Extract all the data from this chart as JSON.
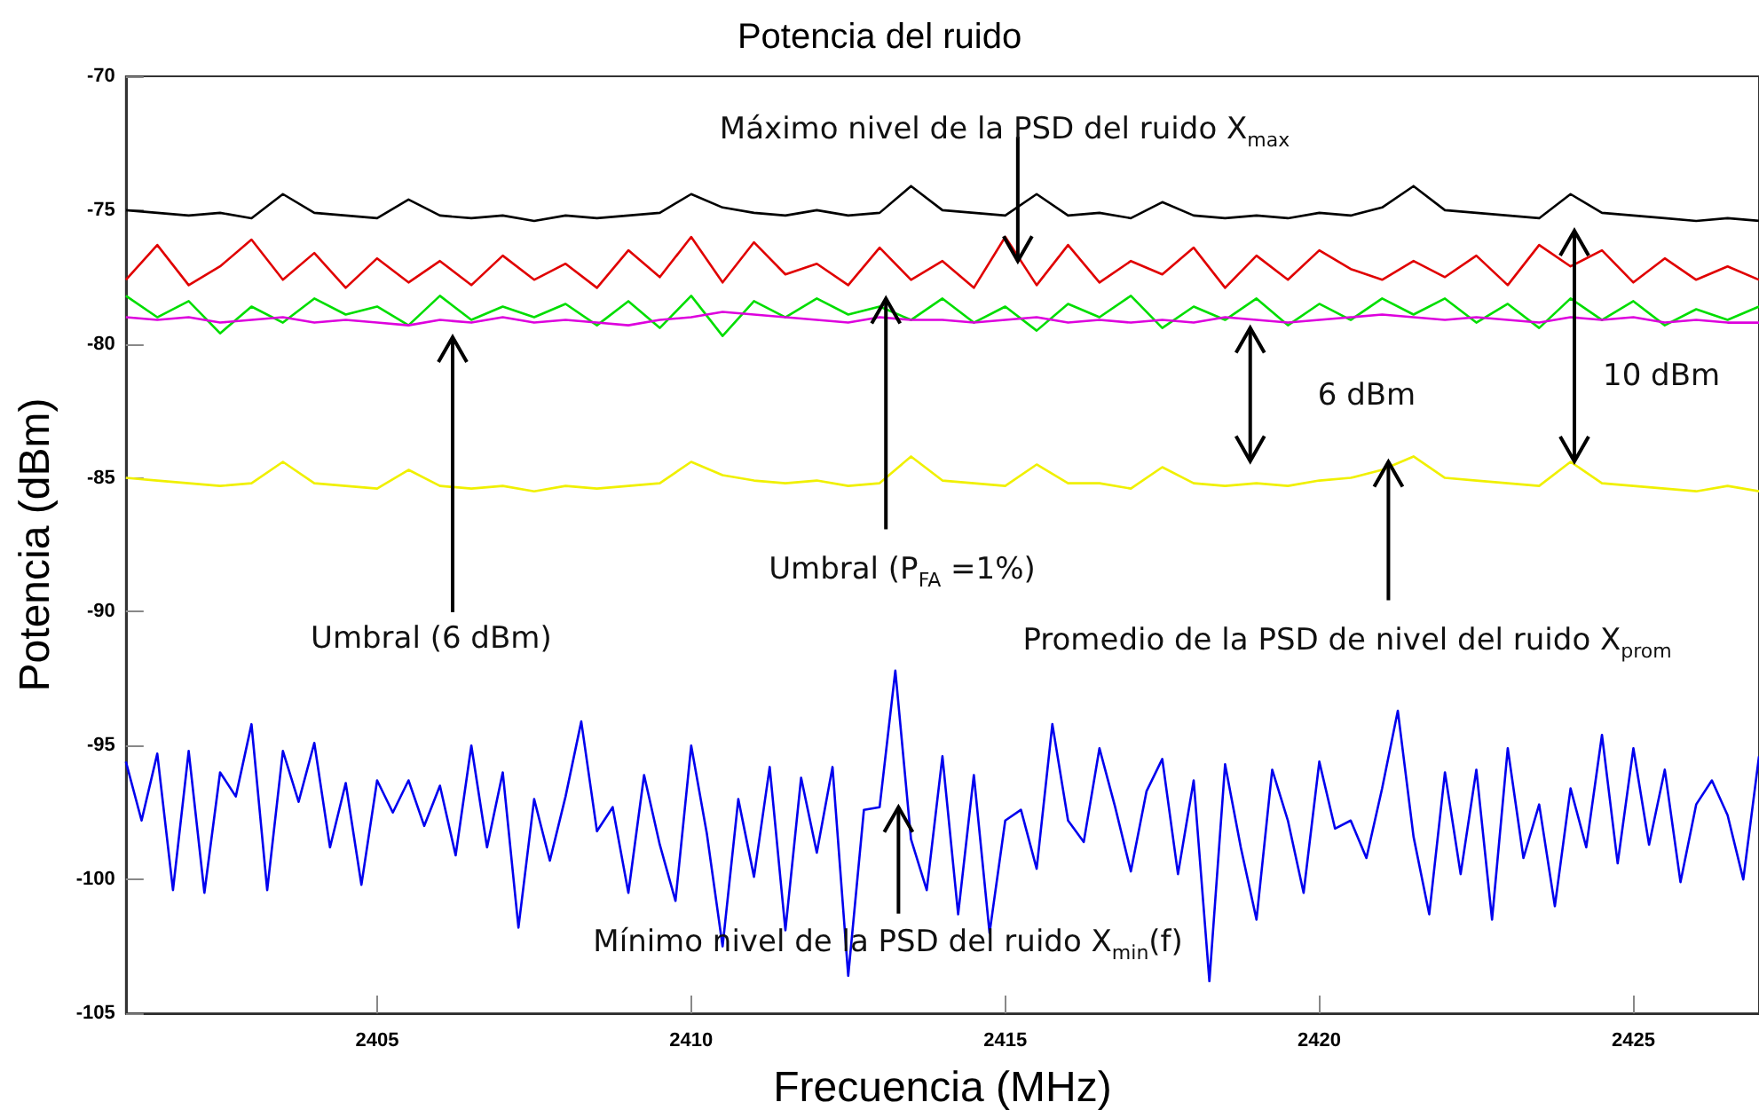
{
  "chart_data": {
    "type": "line",
    "title": "Potencia del ruido",
    "xlabel": "Frecuencia (MHz)",
    "ylabel": "Potencia (dBm)",
    "xlim": [
      2401,
      2427
    ],
    "xticks": [
      2405,
      2410,
      2415,
      2420,
      2425
    ],
    "ylim": [
      -105,
      -70
    ],
    "yticks": [
      -105,
      -100,
      -95,
      -90,
      -85,
      -80,
      -75,
      -70
    ],
    "grid": false,
    "line_style": "solid",
    "x": [
      2401,
      2401.5,
      2402,
      2402.5,
      2403,
      2403.5,
      2404,
      2404.5,
      2405,
      2405.5,
      2406,
      2406.5,
      2407,
      2407.5,
      2408,
      2408.5,
      2409,
      2409.5,
      2410,
      2410.5,
      2411,
      2411.5,
      2412,
      2412.5,
      2413,
      2413.5,
      2414,
      2414.5,
      2415,
      2415.5,
      2416,
      2416.5,
      2417,
      2417.5,
      2418,
      2418.5,
      2419,
      2419.5,
      2420,
      2420.5,
      2421,
      2421.5,
      2422,
      2422.5,
      2423,
      2423.5,
      2424,
      2424.5,
      2425,
      2425.5,
      2426,
      2426.5,
      2427
    ],
    "series": [
      {
        "color": "#000000",
        "values": [
          -75.0,
          -75.1,
          -75.2,
          -75.1,
          -75.3,
          -74.4,
          -75.1,
          -75.2,
          -75.3,
          -74.6,
          -75.2,
          -75.3,
          -75.2,
          -75.4,
          -75.2,
          -75.3,
          -75.2,
          -75.1,
          -74.4,
          -74.9,
          -75.1,
          -75.2,
          -75.0,
          -75.2,
          -75.1,
          -74.1,
          -75.0,
          -75.1,
          -75.2,
          -74.4,
          -75.2,
          -75.1,
          -75.3,
          -74.7,
          -75.2,
          -75.3,
          -75.2,
          -75.3,
          -75.1,
          -75.2,
          -74.9,
          -74.1,
          -75.0,
          -75.1,
          -75.2,
          -75.3,
          -74.4,
          -75.1,
          -75.2,
          -75.3,
          -75.4,
          -75.3,
          -75.4
        ]
      },
      {
        "color": "#e00000",
        "values": [
          -77.6,
          -76.3,
          -77.8,
          -77.1,
          -76.1,
          -77.6,
          -76.6,
          -77.9,
          -76.8,
          -77.7,
          -76.9,
          -77.8,
          -76.7,
          -77.6,
          -77.0,
          -77.9,
          -76.5,
          -77.5,
          -76.0,
          -77.7,
          -76.2,
          -77.4,
          -77.0,
          -77.8,
          -76.4,
          -77.6,
          -76.9,
          -77.9,
          -76.0,
          -77.8,
          -76.3,
          -77.7,
          -76.9,
          -77.4,
          -76.4,
          -77.9,
          -76.7,
          -77.6,
          -76.5,
          -77.2,
          -77.6,
          -76.9,
          -77.5,
          -76.7,
          -77.8,
          -76.3,
          -77.1,
          -76.5,
          -77.7,
          -76.8,
          -77.6,
          -77.1,
          -77.6
        ]
      },
      {
        "color": "#00dd00",
        "values": [
          -78.2,
          -79.0,
          -78.4,
          -79.6,
          -78.6,
          -79.2,
          -78.3,
          -78.9,
          -78.6,
          -79.3,
          -78.2,
          -79.1,
          -78.6,
          -79.0,
          -78.5,
          -79.3,
          -78.4,
          -79.4,
          -78.2,
          -79.7,
          -78.4,
          -79.0,
          -78.3,
          -78.9,
          -78.6,
          -79.1,
          -78.3,
          -79.2,
          -78.6,
          -79.5,
          -78.5,
          -79.0,
          -78.2,
          -79.4,
          -78.6,
          -79.1,
          -78.3,
          -79.3,
          -78.5,
          -79.1,
          -78.3,
          -78.9,
          -78.3,
          -79.2,
          -78.5,
          -79.4,
          -78.3,
          -79.1,
          -78.4,
          -79.3,
          -78.7,
          -79.1,
          -78.6
        ]
      },
      {
        "color": "#dd00dd",
        "values": [
          -79.0,
          -79.1,
          -79.0,
          -79.2,
          -79.1,
          -79.0,
          -79.2,
          -79.1,
          -79.2,
          -79.3,
          -79.1,
          -79.2,
          -79.0,
          -79.2,
          -79.1,
          -79.2,
          -79.3,
          -79.1,
          -79.0,
          -78.8,
          -78.9,
          -79.0,
          -79.1,
          -79.2,
          -79.0,
          -79.1,
          -79.1,
          -79.2,
          -79.1,
          -79.0,
          -79.2,
          -79.1,
          -79.2,
          -79.1,
          -79.2,
          -79.0,
          -79.1,
          -79.2,
          -79.1,
          -79.0,
          -78.9,
          -79.0,
          -79.1,
          -79.0,
          -79.1,
          -79.2,
          -79.0,
          -79.1,
          -79.0,
          -79.2,
          -79.1,
          -79.2,
          -79.2
        ]
      },
      {
        "color": "#f0f000",
        "values": [
          -85.0,
          -85.1,
          -85.2,
          -85.3,
          -85.2,
          -84.4,
          -85.2,
          -85.3,
          -85.4,
          -84.7,
          -85.3,
          -85.4,
          -85.3,
          -85.5,
          -85.3,
          -85.4,
          -85.3,
          -85.2,
          -84.4,
          -84.9,
          -85.1,
          -85.2,
          -85.1,
          -85.3,
          -85.2,
          -84.2,
          -85.1,
          -85.2,
          -85.3,
          -84.5,
          -85.2,
          -85.2,
          -85.4,
          -84.6,
          -85.2,
          -85.3,
          -85.2,
          -85.3,
          -85.1,
          -85.0,
          -84.7,
          -84.2,
          -85.0,
          -85.1,
          -85.2,
          -85.3,
          -84.4,
          -85.2,
          -85.3,
          -85.4,
          -85.5,
          -85.3,
          -85.5
        ]
      },
      {
        "color": "#0000ee",
        "x": [
          2401,
          2401.25,
          2401.5,
          2401.75,
          2402,
          2402.25,
          2402.5,
          2402.75,
          2403,
          2403.25,
          2403.5,
          2403.75,
          2404,
          2404.25,
          2404.5,
          2404.75,
          2405,
          2405.25,
          2405.5,
          2405.75,
          2406,
          2406.25,
          2406.5,
          2406.75,
          2407,
          2407.25,
          2407.5,
          2407.75,
          2408,
          2408.25,
          2408.5,
          2408.75,
          2409,
          2409.25,
          2409.5,
          2409.75,
          2410,
          2410.25,
          2410.5,
          2410.75,
          2411,
          2411.25,
          2411.5,
          2411.75,
          2412,
          2412.25,
          2412.5,
          2412.75,
          2413,
          2413.25,
          2413.5,
          2413.75,
          2414,
          2414.25,
          2414.5,
          2414.75,
          2415,
          2415.25,
          2415.5,
          2415.75,
          2416,
          2416.25,
          2416.5,
          2416.75,
          2417,
          2417.25,
          2417.5,
          2417.75,
          2418,
          2418.25,
          2418.5,
          2418.75,
          2419,
          2419.25,
          2419.5,
          2419.75,
          2420,
          2420.25,
          2420.5,
          2420.75,
          2421,
          2421.25,
          2421.5,
          2421.75,
          2422,
          2422.25,
          2422.5,
          2422.75,
          2423,
          2423.25,
          2423.5,
          2423.75,
          2424,
          2424.25,
          2424.5,
          2424.75,
          2425,
          2425.25,
          2425.5,
          2425.75,
          2426,
          2426.25,
          2426.5,
          2426.75,
          2427
        ],
        "values": [
          -95.6,
          -97.8,
          -95.3,
          -100.4,
          -95.2,
          -100.5,
          -96.0,
          -96.9,
          -94.2,
          -100.4,
          -95.2,
          -97.1,
          -94.9,
          -98.8,
          -96.4,
          -100.2,
          -96.3,
          -97.5,
          -96.3,
          -98.0,
          -96.5,
          -99.1,
          -95.0,
          -98.8,
          -96.0,
          -101.8,
          -97.0,
          -99.3,
          -96.9,
          -94.1,
          -98.2,
          -97.3,
          -100.5,
          -96.1,
          -98.7,
          -100.8,
          -95.0,
          -98.3,
          -102.5,
          -97.0,
          -99.9,
          -95.8,
          -101.9,
          -96.2,
          -99.0,
          -95.8,
          -103.6,
          -97.4,
          -97.3,
          -92.2,
          -98.5,
          -100.4,
          -95.4,
          -101.3,
          -96.1,
          -102.0,
          -97.8,
          -97.4,
          -99.6,
          -94.2,
          -97.8,
          -98.6,
          -95.1,
          -97.3,
          -99.7,
          -96.7,
          -95.5,
          -99.8,
          -96.3,
          -103.8,
          -95.7,
          -98.8,
          -101.5,
          -95.9,
          -97.8,
          -100.5,
          -95.6,
          -98.1,
          -97.8,
          -99.2,
          -96.6,
          -93.7,
          -98.4,
          -101.3,
          -96.0,
          -99.8,
          -95.9,
          -101.5,
          -95.1,
          -99.2,
          -97.2,
          -101.0,
          -96.6,
          -98.8,
          -94.6,
          -99.4,
          -95.1,
          -98.7,
          -95.9,
          -100.1,
          -97.2,
          -96.3,
          -97.6,
          -100.0,
          -95.4
        ]
      }
    ],
    "annotations": [
      {
        "text": "Máximo nivel de la PSD del ruido X$_{max}$",
        "x": 2415.2,
        "y": -76.9
      },
      "Umbral (6 dBm)",
      {
        "text": "Umbral (P$_{FA}$ =1%)",
        "x": 2413.1,
        "y": -78.3
      },
      {
        "text": "Promedio de la PSD de nivel del ruido X$_{prom}$",
        "x": 2421.1,
        "y": -84.4
      },
      {
        "text": "Mínimo nivel de la PSD del ruido X$_{min}$(f)",
        "x": 2413.3,
        "y": -97.3
      },
      {
        "text": "6 dBm",
        "x": 2418.9,
        "y": -79.4
      },
      "10 dBm"
    ]
  }
}
